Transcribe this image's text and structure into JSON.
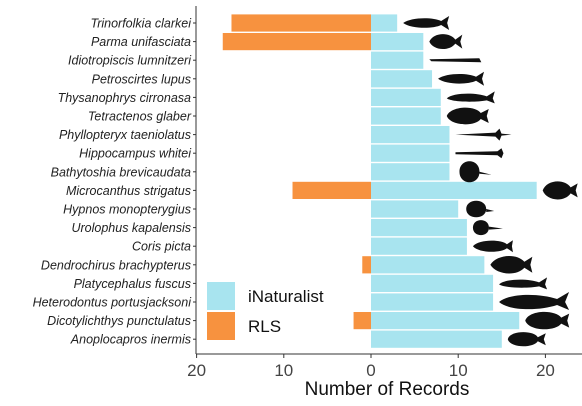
{
  "chart_data": {
    "type": "bar",
    "orientation": "horizontal",
    "layout": "diverging",
    "xlabel": "Number of Records",
    "ylabel": "",
    "xlim": [
      -20,
      24
    ],
    "xticks": [
      -20,
      -10,
      0,
      10,
      20
    ],
    "xtick_labels": [
      "20",
      "10",
      "0",
      "10",
      "20"
    ],
    "legend_position": "bottom-left",
    "grid": false,
    "categories": [
      "Trinorfolkia clarkei",
      "Parma unifasciata",
      "Idiotropiscis lumnitzeri",
      "Petroscirtes lupus",
      "Thysanophrys cirronasa",
      "Tetractenos glaber",
      "Phyllopteryx taeniolatus",
      "Hippocampus whitei",
      "Bathytoshia brevicaudata",
      "Microcanthus strigatus",
      "Hypnos monopterygius",
      "Urolophus kapalensis",
      "Coris picta",
      "Dendrochirus brachypterus",
      "Platycephalus fuscus",
      "Heterodontus portusjacksoni",
      "Dicotylichthys punctulatus",
      "Anoplocapros inermis"
    ],
    "series": [
      {
        "name": "iNaturalist",
        "color": "#a8e4ef",
        "direction": "right",
        "values": [
          3,
          6,
          6,
          7,
          8,
          8,
          9,
          9,
          9,
          19,
          10,
          11,
          11,
          13,
          14,
          14,
          17,
          15
        ]
      },
      {
        "name": "RLS",
        "color": "#f7923f",
        "direction": "left",
        "values": [
          16,
          17,
          0,
          0,
          0,
          0,
          0,
          0,
          0,
          9,
          0,
          0,
          0,
          1,
          0,
          0,
          2,
          0
        ]
      }
    ],
    "silhouettes": [
      "blenny",
      "damselfish",
      "pipehorse",
      "blenny",
      "flathead",
      "pufferfish",
      "seadragon",
      "seahorse",
      "stingray",
      "butterflyfish",
      "numbfish",
      "stingaree",
      "wrasse",
      "lionfish",
      "flathead",
      "hornshark",
      "porcupinefish",
      "boxfish"
    ]
  }
}
